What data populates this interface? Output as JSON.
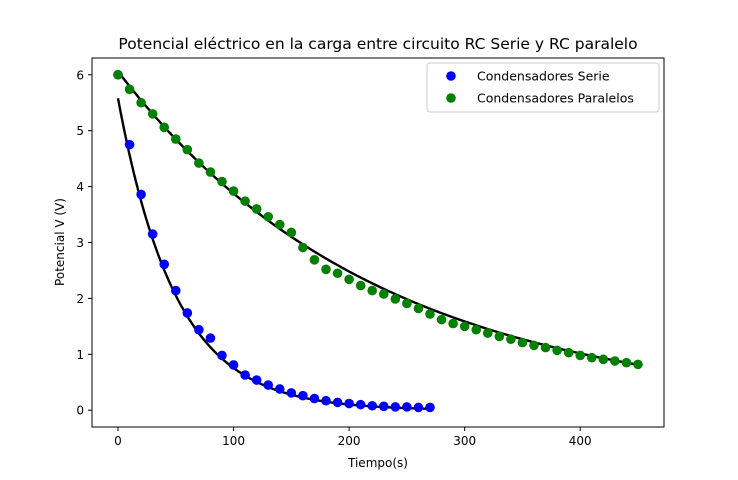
{
  "chart_data": {
    "type": "scatter",
    "title": "Potencial eléctrico en la carga entre circuito RC Serie y RC paralelo",
    "xlabel": "Tiempo(s)",
    "ylabel": "Potencial V (V)",
    "xlim": [
      -22.5,
      472.5
    ],
    "ylim": [
      -0.3,
      6.3
    ],
    "xticks": [
      0,
      100,
      200,
      300,
      400
    ],
    "yticks": [
      0,
      1,
      2,
      3,
      4,
      5,
      6
    ],
    "xtick_labels": [
      "0",
      "100",
      "200",
      "300",
      "400"
    ],
    "ytick_labels": [
      "0",
      "1",
      "2",
      "3",
      "4",
      "5",
      "6"
    ],
    "grid": false,
    "legend_position": "top-right",
    "series": [
      {
        "name": "Condensadores Serie",
        "color": "#0000ff",
        "x": [
          0,
          10,
          20,
          30,
          40,
          50,
          60,
          70,
          80,
          90,
          100,
          110,
          120,
          130,
          140,
          150,
          160,
          170,
          180,
          190,
          200,
          210,
          220,
          230,
          240,
          250,
          260,
          270
        ],
        "y": [
          6.0,
          4.75,
          3.86,
          3.15,
          2.61,
          2.14,
          1.74,
          1.44,
          1.29,
          0.98,
          0.81,
          0.63,
          0.54,
          0.45,
          0.38,
          0.31,
          0.26,
          0.21,
          0.17,
          0.14,
          0.12,
          0.1,
          0.08,
          0.07,
          0.06,
          0.06,
          0.05,
          0.05
        ]
      },
      {
        "name": "Condensadores Paralelos",
        "color": "#008000",
        "x": [
          0,
          10,
          20,
          30,
          40,
          50,
          60,
          70,
          80,
          90,
          100,
          110,
          120,
          130,
          140,
          150,
          160,
          170,
          180,
          190,
          200,
          210,
          220,
          230,
          240,
          250,
          260,
          270,
          280,
          290,
          300,
          310,
          320,
          330,
          340,
          350,
          360,
          370,
          380,
          390,
          400,
          410,
          420,
          430,
          440,
          450
        ],
        "y": [
          6.0,
          5.74,
          5.5,
          5.3,
          5.06,
          4.85,
          4.66,
          4.42,
          4.26,
          4.09,
          3.92,
          3.74,
          3.6,
          3.46,
          3.32,
          3.18,
          2.91,
          2.69,
          2.52,
          2.45,
          2.34,
          2.23,
          2.14,
          2.08,
          1.99,
          1.91,
          1.82,
          1.72,
          1.62,
          1.55,
          1.5,
          1.44,
          1.38,
          1.32,
          1.27,
          1.21,
          1.16,
          1.12,
          1.07,
          1.03,
          0.98,
          0.94,
          0.91,
          0.88,
          0.85,
          0.82
        ]
      }
    ],
    "fit_lines": [
      {
        "color": "#000000",
        "amplitude": 5.58,
        "tau": 50.0,
        "x_range": [
          0,
          270
        ]
      },
      {
        "color": "#000000",
        "amplitude": 6.06,
        "tau": 224.0,
        "x_range": [
          0,
          450
        ]
      }
    ]
  }
}
